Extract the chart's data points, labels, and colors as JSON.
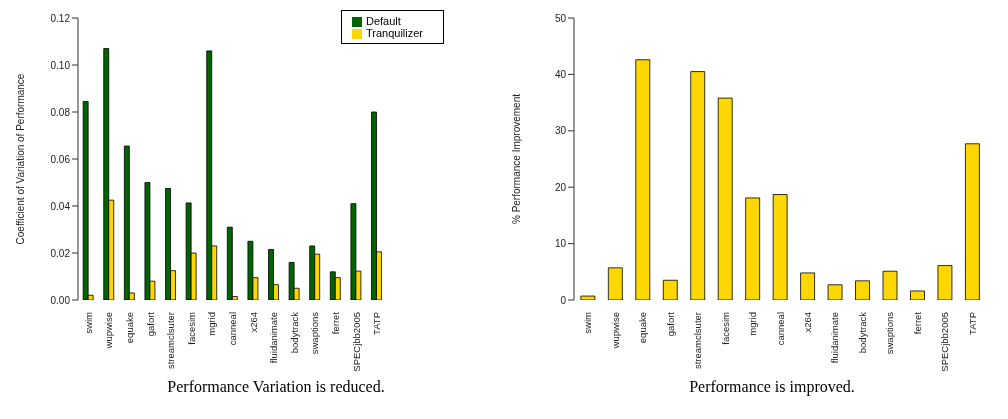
{
  "chart_data": [
    {
      "type": "bar",
      "ylabel": "Coefficient of Variation of Performance",
      "categories": [
        "swim",
        "wupwise",
        "equake",
        "gafort",
        "streamclsuter",
        "facesim",
        "mgrid",
        "canneal",
        "x264",
        "fluidanimate",
        "bodytrack",
        "swaptions",
        "ferret",
        "SPECjbb2005",
        "TATP"
      ],
      "series": [
        {
          "name": "Default",
          "color": "#006400",
          "values": [
            0.0845,
            0.107,
            0.0655,
            0.05,
            0.0475,
            0.0413,
            0.106,
            0.031,
            0.025,
            0.0215,
            0.016,
            0.023,
            0.012,
            0.041,
            0.08
          ]
        },
        {
          "name": "Tranquilizer",
          "color": "#ffd700",
          "values": [
            0.002,
            0.0425,
            0.003,
            0.008,
            0.0125,
            0.02,
            0.023,
            0.0015,
            0.0095,
            0.0065,
            0.005,
            0.0195,
            0.0095,
            0.0123,
            0.0205
          ]
        }
      ],
      "ylim": [
        0,
        0.12
      ],
      "yticks": [
        {
          "value": 0,
          "label": "0.00"
        },
        {
          "value": 0.02,
          "label": "0.02"
        },
        {
          "value": 0.04,
          "label": "0.04"
        },
        {
          "value": 0.06,
          "label": "0.06"
        },
        {
          "value": 0.08,
          "label": "0.08"
        },
        {
          "value": 0.1,
          "label": "0.10"
        },
        {
          "value": 0.12,
          "label": "0.12"
        }
      ],
      "legend": "top right",
      "annotations": [
        "Performance Variation is reduced."
      ]
    },
    {
      "type": "bar",
      "ylabel": "% Performance Improvement",
      "categories": [
        "swim",
        "wupwise",
        "equake",
        "gafort",
        "streamclsuter",
        "facesim",
        "mgrid",
        "canneal",
        "x264",
        "fluidanimate",
        "bodytrack",
        "swaptions",
        "ferret",
        "SPECjbb2005",
        "TATP"
      ],
      "series": [
        {
          "color": "#ffd700",
          "values": [
            0.7,
            5.7,
            42.6,
            3.5,
            40.5,
            35.8,
            18.1,
            18.7,
            4.8,
            2.7,
            3.4,
            5.1,
            1.6,
            6.1,
            27.7
          ]
        }
      ],
      "ylim": [
        0,
        50
      ],
      "yticks": [
        0,
        10,
        20,
        30,
        40,
        50
      ],
      "legend": false,
      "annotations": [
        "Performance is improved."
      ]
    }
  ]
}
